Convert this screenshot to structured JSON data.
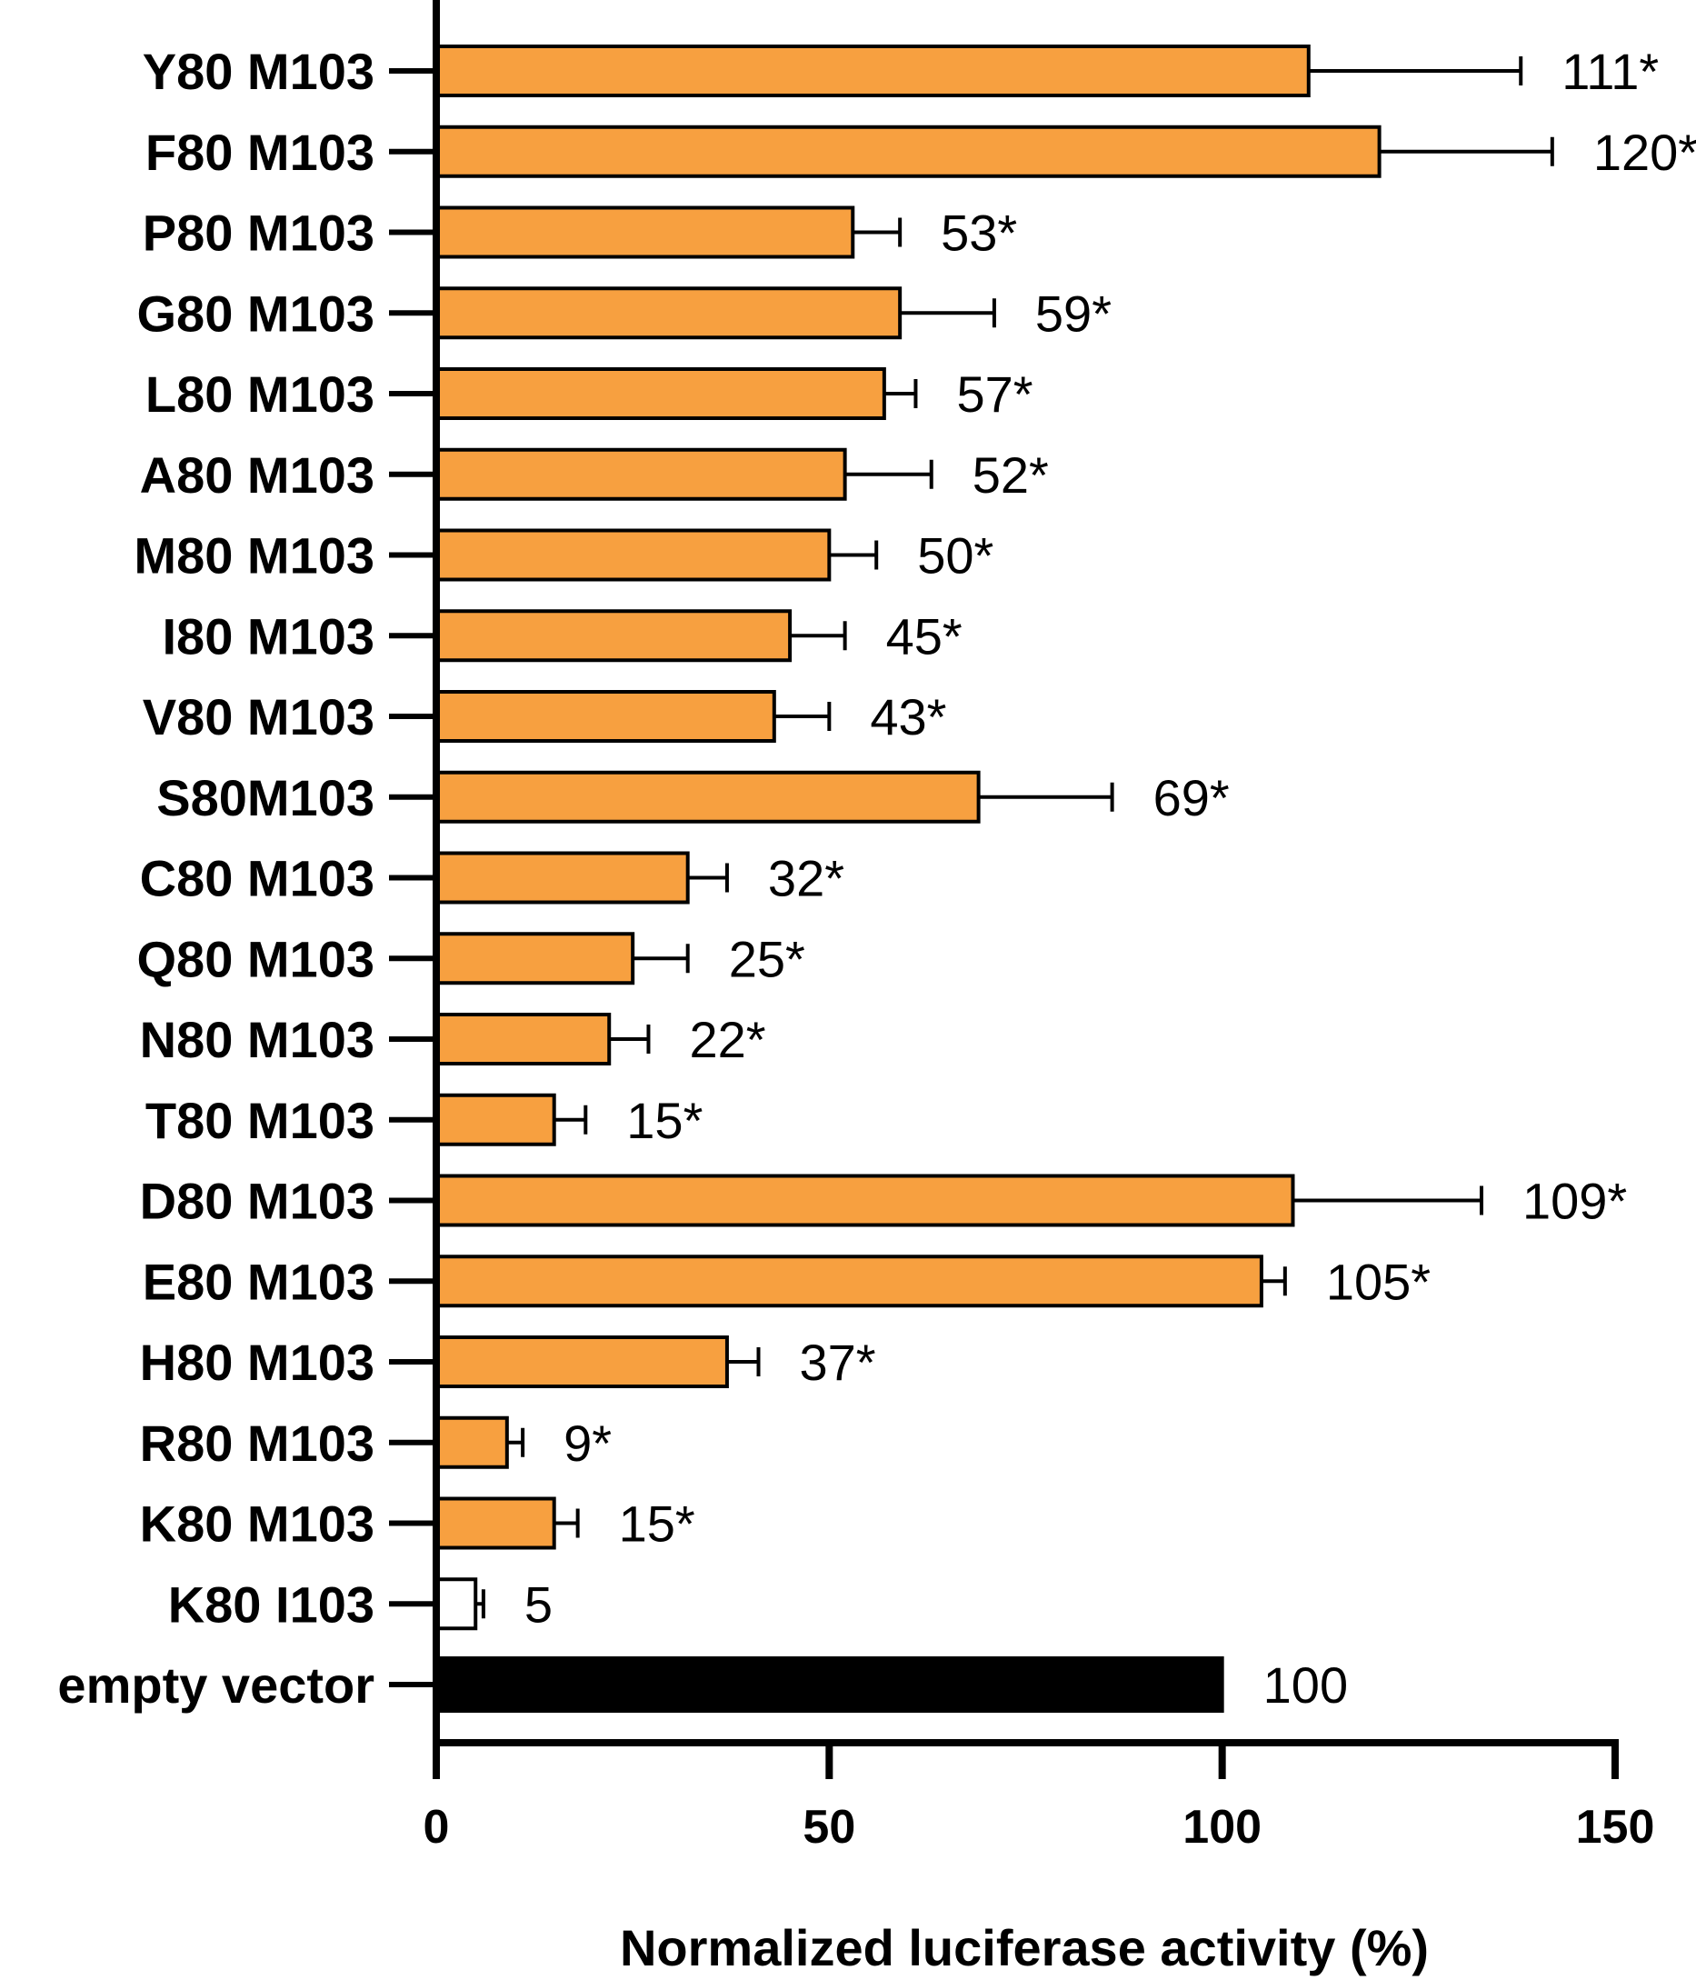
{
  "chart_data": {
    "type": "bar",
    "orientation": "horizontal",
    "xlabel": "Normalized luciferase activity (%)",
    "xlim": [
      0,
      150
    ],
    "xticks": [
      0,
      50,
      100,
      150
    ],
    "grid": false,
    "colors": {
      "mutant": "#F7A040",
      "wildtype": "#FFFFFF",
      "control": "#000000",
      "outline": "#000000"
    },
    "bars": [
      {
        "category": "Y80 M103",
        "value": 111,
        "error": 27,
        "label": "111*",
        "group": "mutant"
      },
      {
        "category": "F80 M103",
        "value": 120,
        "error": 22,
        "label": "120*",
        "group": "mutant"
      },
      {
        "category": "P80 M103",
        "value": 53,
        "error": 6,
        "label": "53*",
        "group": "mutant"
      },
      {
        "category": "G80 M103",
        "value": 59,
        "error": 12,
        "label": "59*",
        "group": "mutant"
      },
      {
        "category": "L80 M103",
        "value": 57,
        "error": 4,
        "label": "57*",
        "group": "mutant"
      },
      {
        "category": "A80 M103",
        "value": 52,
        "error": 11,
        "label": "52*",
        "group": "mutant"
      },
      {
        "category": "M80 M103",
        "value": 50,
        "error": 6,
        "label": "50*",
        "group": "mutant"
      },
      {
        "category": "I80 M103",
        "value": 45,
        "error": 7,
        "label": "45*",
        "group": "mutant"
      },
      {
        "category": "V80 M103",
        "value": 43,
        "error": 7,
        "label": "43*",
        "group": "mutant"
      },
      {
        "category": "S80M103",
        "value": 69,
        "error": 17,
        "label": "69*",
        "group": "mutant"
      },
      {
        "category": "C80 M103",
        "value": 32,
        "error": 5,
        "label": "32*",
        "group": "mutant"
      },
      {
        "category": "Q80 M103",
        "value": 25,
        "error": 7,
        "label": "25*",
        "group": "mutant"
      },
      {
        "category": "N80 M103",
        "value": 22,
        "error": 5,
        "label": "22*",
        "group": "mutant"
      },
      {
        "category": "T80 M103",
        "value": 15,
        "error": 4,
        "label": "15*",
        "group": "mutant"
      },
      {
        "category": "D80 M103",
        "value": 109,
        "error": 24,
        "label": "109*",
        "group": "mutant"
      },
      {
        "category": "E80 M103",
        "value": 105,
        "error": 3,
        "label": "105*",
        "group": "mutant"
      },
      {
        "category": "H80 M103",
        "value": 37,
        "error": 4,
        "label": "37*",
        "group": "mutant"
      },
      {
        "category": "R80 M103",
        "value": 9,
        "error": 2,
        "label": "9*",
        "group": "mutant"
      },
      {
        "category": "K80 M103",
        "value": 15,
        "error": 3,
        "label": "15*",
        "group": "mutant"
      },
      {
        "category": "K80 I103",
        "value": 5,
        "error": 1,
        "label": "5",
        "group": "wildtype"
      },
      {
        "category": "empty vector",
        "value": 100,
        "error": 0,
        "label": "100",
        "group": "control"
      }
    ]
  }
}
